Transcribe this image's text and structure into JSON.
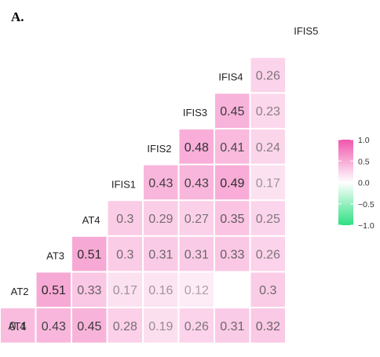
{
  "panel_label": "A.",
  "chart_data": {
    "type": "heatmap",
    "variables": [
      "AT1",
      "AT2",
      "AT3",
      "AT4",
      "IFIS1",
      "IFIS2",
      "IFIS3",
      "IFIS4",
      "IFIS5"
    ],
    "cells": [
      {
        "row": "AT1",
        "col": "AT1",
        "value": 0.4
      },
      {
        "row": "AT1",
        "col": "AT2",
        "value": 0.43
      },
      {
        "row": "AT1",
        "col": "AT3",
        "value": 0.45
      },
      {
        "row": "AT1",
        "col": "AT4",
        "value": 0.28
      },
      {
        "row": "AT1",
        "col": "IFIS1",
        "value": 0.19
      },
      {
        "row": "AT1",
        "col": "IFIS2",
        "value": 0.26
      },
      {
        "row": "AT1",
        "col": "IFIS3",
        "value": 0.31
      },
      {
        "row": "AT1",
        "col": "IFIS4",
        "value": 0.32
      },
      {
        "row": "AT2",
        "col": "AT2",
        "value": 0.51
      },
      {
        "row": "AT2",
        "col": "AT3",
        "value": 0.33
      },
      {
        "row": "AT2",
        "col": "AT4",
        "value": 0.17
      },
      {
        "row": "AT2",
        "col": "IFIS1",
        "value": 0.16
      },
      {
        "row": "AT2",
        "col": "IFIS2",
        "value": 0.12
      },
      {
        "row": "AT2",
        "col": "IFIS4",
        "value": 0.3
      },
      {
        "row": "AT3",
        "col": "AT3",
        "value": 0.51
      },
      {
        "row": "AT3",
        "col": "AT4",
        "value": 0.3
      },
      {
        "row": "AT3",
        "col": "IFIS1",
        "value": 0.31
      },
      {
        "row": "AT3",
        "col": "IFIS2",
        "value": 0.31
      },
      {
        "row": "AT3",
        "col": "IFIS3",
        "value": 0.33
      },
      {
        "row": "AT3",
        "col": "IFIS4",
        "value": 0.26
      },
      {
        "row": "AT4",
        "col": "AT4",
        "value": 0.3
      },
      {
        "row": "AT4",
        "col": "IFIS1",
        "value": 0.29
      },
      {
        "row": "AT4",
        "col": "IFIS2",
        "value": 0.27
      },
      {
        "row": "AT4",
        "col": "IFIS3",
        "value": 0.35
      },
      {
        "row": "AT4",
        "col": "IFIS4",
        "value": 0.25
      },
      {
        "row": "IFIS1",
        "col": "IFIS1",
        "value": 0.43
      },
      {
        "row": "IFIS1",
        "col": "IFIS2",
        "value": 0.43
      },
      {
        "row": "IFIS1",
        "col": "IFIS3",
        "value": 0.49
      },
      {
        "row": "IFIS1",
        "col": "IFIS4",
        "value": 0.17
      },
      {
        "row": "IFIS2",
        "col": "IFIS2",
        "value": 0.48
      },
      {
        "row": "IFIS2",
        "col": "IFIS3",
        "value": 0.41
      },
      {
        "row": "IFIS2",
        "col": "IFIS4",
        "value": 0.24
      },
      {
        "row": "IFIS3",
        "col": "IFIS3",
        "value": 0.45
      },
      {
        "row": "IFIS3",
        "col": "IFIS4",
        "value": 0.23
      },
      {
        "row": "IFIS4",
        "col": "IFIS4",
        "value": 0.26
      }
    ],
    "colorbar": {
      "range": [
        -1.0,
        1.0
      ],
      "ticks": [
        {
          "value": 1.0,
          "label": "1.0"
        },
        {
          "value": 0.5,
          "label": "0.5"
        },
        {
          "value": 0.0,
          "label": "0.0"
        },
        {
          "value": -0.5,
          "label": "−0.5"
        },
        {
          "value": -1.0,
          "label": "−1.0"
        }
      ],
      "positive_color": "#f056ad",
      "negative_color": "#2ee082",
      "placement": "right"
    },
    "grid": false
  }
}
